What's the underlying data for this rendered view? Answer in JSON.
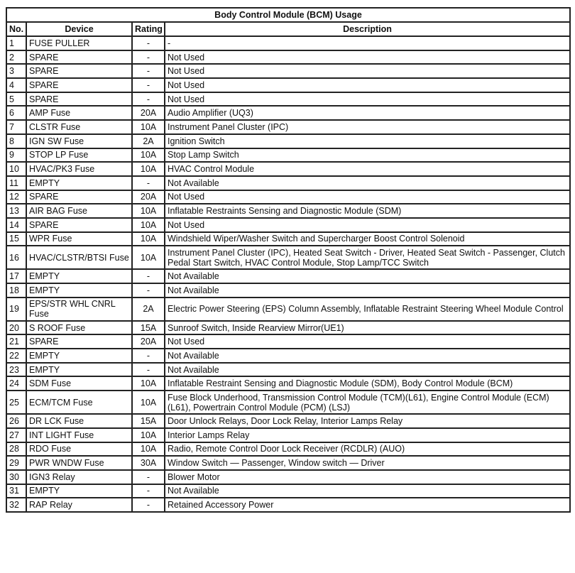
{
  "title": "Body Control Module (BCM) Usage",
  "headers": {
    "no": "No.",
    "device": "Device",
    "rating": "Rating",
    "description": "Description"
  },
  "rows": [
    {
      "no": "1",
      "device": "FUSE PULLER",
      "rating": "-",
      "description": "-"
    },
    {
      "no": "2",
      "device": "SPARE",
      "rating": "-",
      "description": "Not Used"
    },
    {
      "no": "3",
      "device": "SPARE",
      "rating": "-",
      "description": "Not Used"
    },
    {
      "no": "4",
      "device": "SPARE",
      "rating": "-",
      "description": "Not Used"
    },
    {
      "no": "5",
      "device": "SPARE",
      "rating": "-",
      "description": "Not Used"
    },
    {
      "no": "6",
      "device": "AMP Fuse",
      "rating": "20A",
      "description": "Audio Amplifier (UQ3)"
    },
    {
      "no": "7",
      "device": "CLSTR Fuse",
      "rating": "10A",
      "description": "Instrument Panel Cluster (IPC)"
    },
    {
      "no": "8",
      "device": "IGN SW Fuse",
      "rating": "2A",
      "description": "Ignition Switch"
    },
    {
      "no": "9",
      "device": "STOP LP Fuse",
      "rating": "10A",
      "description": "Stop Lamp Switch"
    },
    {
      "no": "10",
      "device": "HVAC/PK3 Fuse",
      "rating": "10A",
      "description": "HVAC Control Module"
    },
    {
      "no": "11",
      "device": "EMPTY",
      "rating": "-",
      "description": "Not Available"
    },
    {
      "no": "12",
      "device": "SPARE",
      "rating": "20A",
      "description": "Not Used"
    },
    {
      "no": "13",
      "device": "AIR BAG Fuse",
      "rating": "10A",
      "description": "Inflatable Restraints Sensing and Diagnostic Module (SDM)"
    },
    {
      "no": "14",
      "device": "SPARE",
      "rating": "10A",
      "description": "Not Used"
    },
    {
      "no": "15",
      "device": "WPR Fuse",
      "rating": "10A",
      "description": "Windshield Wiper/Washer Switch and Supercharger Boost Control Solenoid"
    },
    {
      "no": "16",
      "device": "HVAC/CLSTR/BTSI Fuse",
      "rating": "10A",
      "description": "Instrument Panel Cluster (IPC), Heated Seat Switch - Driver, Heated Seat Switch - Passenger, Clutch Pedal Start Switch, HVAC Control Module, Stop Lamp/TCC Switch"
    },
    {
      "no": "17",
      "device": "EMPTY",
      "rating": "-",
      "description": "Not Available"
    },
    {
      "no": "18",
      "device": "EMPTY",
      "rating": "-",
      "description": "Not Available"
    },
    {
      "no": "19",
      "device": "EPS/STR WHL CNRL Fuse",
      "rating": "2A",
      "description": "Electric Power Steering (EPS) Column Assembly, Inflatable Restraint Steering Wheel Module Control"
    },
    {
      "no": "20",
      "device": "S ROOF Fuse",
      "rating": "15A",
      "description": "Sunroof Switch, Inside Rearview Mirror(UE1)"
    },
    {
      "no": "21",
      "device": "SPARE",
      "rating": "20A",
      "description": "Not Used"
    },
    {
      "no": "22",
      "device": "EMPTY",
      "rating": "-",
      "description": "Not Available"
    },
    {
      "no": "23",
      "device": "EMPTY",
      "rating": "-",
      "description": "Not Available"
    },
    {
      "no": "24",
      "device": "SDM Fuse",
      "rating": "10A",
      "description": "Inflatable Restraint Sensing and Diagnostic Module (SDM), Body Control Module (BCM)"
    },
    {
      "no": "25",
      "device": "ECM/TCM Fuse",
      "rating": "10A",
      "description": "Fuse Block Underhood, Transmission Control Module (TCM)(L61), Engine Control Module (ECM)(L61), Powertrain Control Module (PCM) (LSJ)"
    },
    {
      "no": "26",
      "device": "DR LCK Fuse",
      "rating": "15A",
      "description": "Door Unlock Relays, Door Lock Relay, Interior Lamps Relay"
    },
    {
      "no": "27",
      "device": "INT LIGHT Fuse",
      "rating": "10A",
      "description": "Interior Lamps Relay"
    },
    {
      "no": "28",
      "device": "RDO Fuse",
      "rating": "10A",
      "description": "Radio, Remote Control Door Lock Receiver (RCDLR) (AUO)"
    },
    {
      "no": "29",
      "device": "PWR WNDW Fuse",
      "rating": "30A",
      "description": "Window Switch — Passenger, Window switch — Driver"
    },
    {
      "no": "30",
      "device": "IGN3 Relay",
      "rating": "-",
      "description": "Blower Motor"
    },
    {
      "no": "31",
      "device": "EMPTY",
      "rating": "-",
      "description": "Not Available"
    },
    {
      "no": "32",
      "device": "RAP Relay",
      "rating": "-",
      "description": "Retained Accessory Power"
    }
  ]
}
